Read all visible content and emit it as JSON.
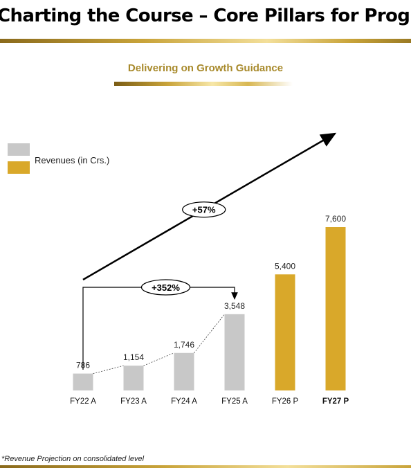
{
  "page": {
    "title": "Charting the Course – Core Pillars for Progre",
    "subtitle": "Delivering on Growth Guidance",
    "footnote": "*Revenue Projection on consolidated level"
  },
  "legend": {
    "label": "Revenues (in Crs.)",
    "colors": [
      "#c8c8c8",
      "#d9a82a"
    ]
  },
  "annotations": {
    "cagr": "+57%",
    "growth": "+352%"
  },
  "colors": {
    "actual": "#c8c8c8",
    "projected": "#d9a82a",
    "accent": "#a88a2c"
  },
  "chart_data": {
    "type": "bar",
    "title": "Delivering on Growth Guidance",
    "categories": [
      "FY22 A",
      "FY23 A",
      "FY24 A",
      "FY25 A",
      "FY26 P",
      "FY27 P"
    ],
    "values": [
      786,
      1154,
      1746,
      3548,
      5400,
      7600
    ],
    "labels": [
      "786",
      "1,154",
      "1,746",
      "3,548",
      "5,400",
      "7,600"
    ],
    "kind": [
      "actual",
      "actual",
      "actual",
      "actual",
      "projected",
      "projected"
    ],
    "bold_category": "FY27 P",
    "ylim": [
      0,
      7600
    ],
    "grid": false,
    "legend_position": "top-left"
  }
}
